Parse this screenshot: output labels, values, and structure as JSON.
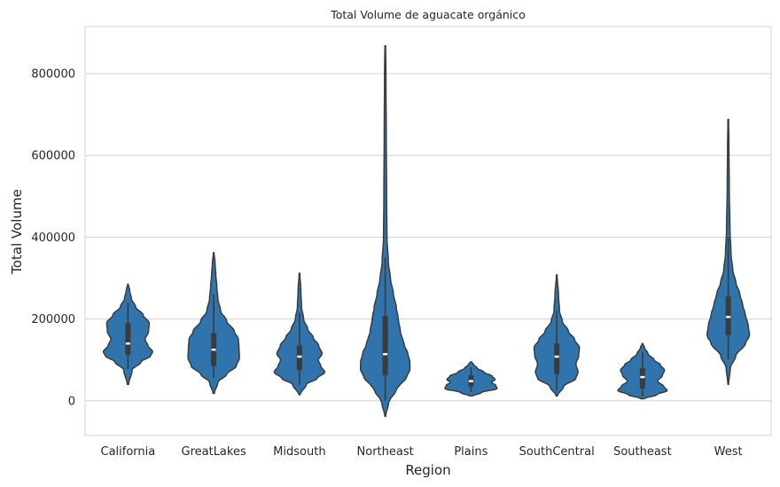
{
  "chart_data": {
    "type": "violin",
    "title": "Total Volume de aguacate orgánico",
    "xlabel": "Region",
    "ylabel": "Total Volume",
    "ylim": [
      -85000,
      915000
    ],
    "yticks": [
      0,
      200000,
      400000,
      600000,
      800000
    ],
    "ytick_labels": [
      "0",
      "200000",
      "400000",
      "600000",
      "800000"
    ],
    "grid": "y",
    "legend": "none",
    "colors": {
      "fill": "#2f74ad",
      "edge": "#3b3b3b",
      "grid": "#d0d0d0",
      "frame": "#d4d4d4",
      "median": "#ffffff"
    },
    "categories": [
      "California",
      "GreatLakes",
      "Midsouth",
      "Northeast",
      "Plains",
      "SouthCentral",
      "Southeast",
      "West"
    ],
    "violins": [
      {
        "region": "California",
        "min": 40000,
        "q1": 113000,
        "median": 140000,
        "q3": 190000,
        "max": 285000,
        "whisker": [
          78000,
          240000
        ],
        "profile": [
          [
            40000,
            0.02
          ],
          [
            75000,
            0.12
          ],
          [
            95000,
            0.38
          ],
          [
            110000,
            0.66
          ],
          [
            120000,
            0.72
          ],
          [
            135000,
            0.58
          ],
          [
            150000,
            0.5
          ],
          [
            170000,
            0.6
          ],
          [
            190000,
            0.62
          ],
          [
            210000,
            0.44
          ],
          [
            230000,
            0.22
          ],
          [
            250000,
            0.1
          ],
          [
            270000,
            0.05
          ],
          [
            285000,
            0.01
          ]
        ]
      },
      {
        "region": "GreatLakes",
        "min": 18000,
        "q1": 85000,
        "median": 125000,
        "q3": 165000,
        "max": 362000,
        "whisker": [
          55000,
          260000
        ],
        "profile": [
          [
            18000,
            0.02
          ],
          [
            45000,
            0.12
          ],
          [
            65000,
            0.38
          ],
          [
            85000,
            0.66
          ],
          [
            105000,
            0.75
          ],
          [
            125000,
            0.74
          ],
          [
            150000,
            0.72
          ],
          [
            170000,
            0.6
          ],
          [
            195000,
            0.38
          ],
          [
            220000,
            0.2
          ],
          [
            250000,
            0.12
          ],
          [
            280000,
            0.09
          ],
          [
            310000,
            0.06
          ],
          [
            335000,
            0.04
          ],
          [
            362000,
            0.01
          ]
        ]
      },
      {
        "region": "Midsouth",
        "min": 15000,
        "q1": 75000,
        "median": 108000,
        "q3": 135000,
        "max": 312000,
        "whisker": [
          38000,
          215000
        ],
        "profile": [
          [
            15000,
            0.02
          ],
          [
            40000,
            0.2
          ],
          [
            55000,
            0.52
          ],
          [
            70000,
            0.74
          ],
          [
            85000,
            0.62
          ],
          [
            100000,
            0.55
          ],
          [
            115000,
            0.66
          ],
          [
            135000,
            0.56
          ],
          [
            155000,
            0.4
          ],
          [
            175000,
            0.24
          ],
          [
            200000,
            0.12
          ],
          [
            230000,
            0.06
          ],
          [
            270000,
            0.04
          ],
          [
            312000,
            0.01
          ]
        ]
      },
      {
        "region": "Northeast",
        "min": -38000,
        "q1": 62000,
        "median": 114000,
        "q3": 208000,
        "max": 868000,
        "whisker": [
          0,
          350000
        ],
        "profile": [
          [
            -38000,
            0.01
          ],
          [
            -5000,
            0.1
          ],
          [
            30000,
            0.34
          ],
          [
            55000,
            0.6
          ],
          [
            75000,
            0.72
          ],
          [
            95000,
            0.72
          ],
          [
            115000,
            0.66
          ],
          [
            140000,
            0.54
          ],
          [
            170000,
            0.44
          ],
          [
            200000,
            0.38
          ],
          [
            230000,
            0.32
          ],
          [
            260000,
            0.24
          ],
          [
            300000,
            0.15
          ],
          [
            340000,
            0.09
          ],
          [
            400000,
            0.05
          ],
          [
            500000,
            0.04
          ],
          [
            650000,
            0.03
          ],
          [
            800000,
            0.02
          ],
          [
            868000,
            0.01
          ]
        ]
      },
      {
        "region": "Plains",
        "min": 12000,
        "q1": 35000,
        "median": 48000,
        "q3": 62000,
        "max": 95000,
        "whisker": [
          22000,
          82000
        ],
        "profile": [
          [
            12000,
            0.05
          ],
          [
            20000,
            0.3
          ],
          [
            30000,
            0.76
          ],
          [
            38000,
            0.72
          ],
          [
            45000,
            0.6
          ],
          [
            52000,
            0.7
          ],
          [
            60000,
            0.62
          ],
          [
            70000,
            0.38
          ],
          [
            80000,
            0.18
          ],
          [
            88000,
            0.08
          ],
          [
            95000,
            0.02
          ]
        ]
      },
      {
        "region": "SouthCentral",
        "min": 12000,
        "q1": 65000,
        "median": 108000,
        "q3": 140000,
        "max": 308000,
        "whisker": [
          25000,
          220000
        ],
        "profile": [
          [
            12000,
            0.02
          ],
          [
            35000,
            0.2
          ],
          [
            55000,
            0.56
          ],
          [
            70000,
            0.62
          ],
          [
            90000,
            0.56
          ],
          [
            110000,
            0.64
          ],
          [
            130000,
            0.66
          ],
          [
            150000,
            0.52
          ],
          [
            170000,
            0.34
          ],
          [
            195000,
            0.16
          ],
          [
            220000,
            0.08
          ],
          [
            260000,
            0.05
          ],
          [
            308000,
            0.01
          ]
        ]
      },
      {
        "region": "Southeast",
        "min": 5000,
        "q1": 30000,
        "median": 58000,
        "q3": 80000,
        "max": 140000,
        "whisker": [
          10000,
          120000
        ],
        "profile": [
          [
            5000,
            0.05
          ],
          [
            15000,
            0.42
          ],
          [
            25000,
            0.72
          ],
          [
            35000,
            0.62
          ],
          [
            48000,
            0.44
          ],
          [
            62000,
            0.58
          ],
          [
            75000,
            0.64
          ],
          [
            88000,
            0.52
          ],
          [
            100000,
            0.34
          ],
          [
            115000,
            0.16
          ],
          [
            130000,
            0.06
          ],
          [
            140000,
            0.01
          ]
        ]
      },
      {
        "region": "West",
        "min": 40000,
        "q1": 160000,
        "median": 205000,
        "q3": 255000,
        "max": 688000,
        "whisker": [
          100000,
          400000
        ],
        "profile": [
          [
            40000,
            0.01
          ],
          [
            80000,
            0.06
          ],
          [
            110000,
            0.22
          ],
          [
            140000,
            0.5
          ],
          [
            160000,
            0.62
          ],
          [
            185000,
            0.58
          ],
          [
            210000,
            0.5
          ],
          [
            235000,
            0.42
          ],
          [
            260000,
            0.34
          ],
          [
            290000,
            0.22
          ],
          [
            320000,
            0.13
          ],
          [
            360000,
            0.08
          ],
          [
            420000,
            0.05
          ],
          [
            520000,
            0.03
          ],
          [
            620000,
            0.02
          ],
          [
            688000,
            0.01
          ]
        ]
      }
    ]
  }
}
